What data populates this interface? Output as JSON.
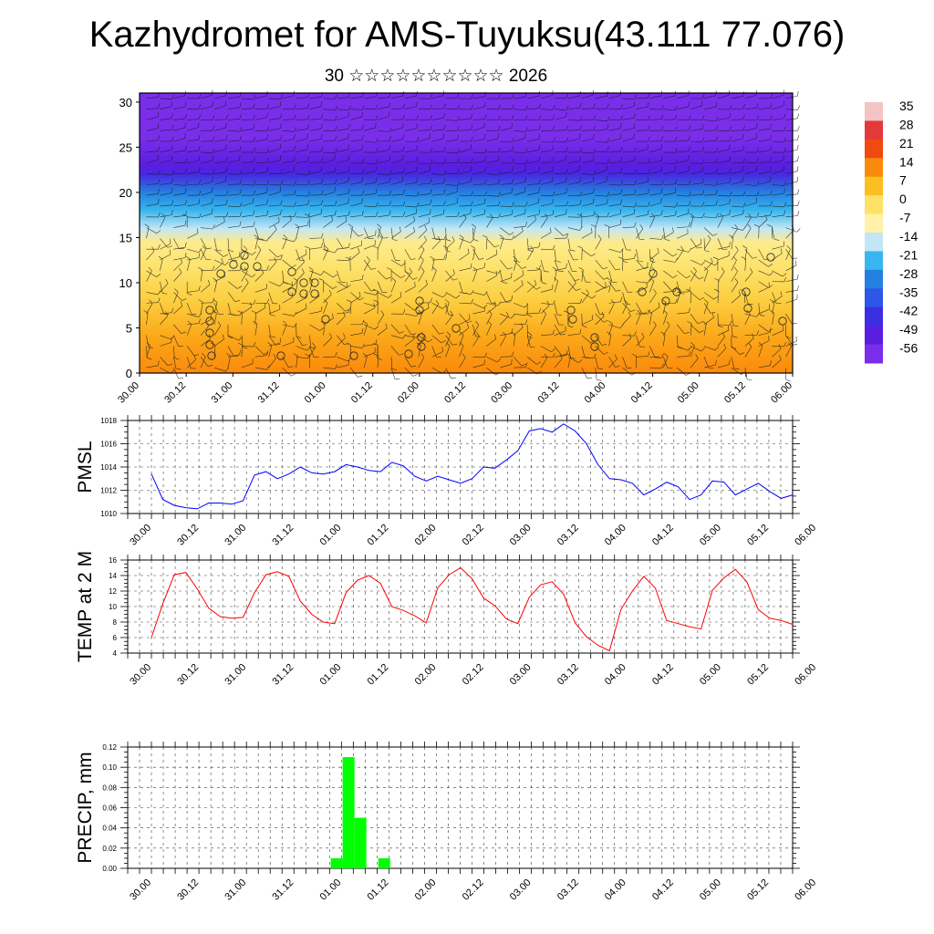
{
  "header": {
    "title": "Kazhydromet for AMS-Tuyuksu(43.111 77.076)",
    "subtitle": "30 ☆☆☆☆☆☆☆☆☆☆ 2026"
  },
  "chart_data": [
    {
      "type": "heatmap",
      "description_role": "vertical cross-section of temperature with wind barbs",
      "x_tick_labels": [
        "30.00",
        "30.12",
        "31.00",
        "31.12",
        "01.00",
        "01.12",
        "02.00",
        "02.12",
        "03.00",
        "03.12",
        "04.00",
        "04.12",
        "05.00",
        "05.12",
        "06.00"
      ],
      "y_ticks": [
        0,
        5,
        10,
        15,
        20,
        25,
        30
      ],
      "ylim": [
        0,
        31
      ],
      "colorbar": {
        "labels": [
          "35",
          "28",
          "21",
          "14",
          "7",
          "0",
          "-7",
          "-14",
          "-21",
          "-28",
          "-35",
          "-42",
          "-49",
          "-56"
        ],
        "colors": [
          "#f4c4c4",
          "#e23a3a",
          "#f04a10",
          "#fa8a0c",
          "#fbbf22",
          "#fde267",
          "#fff2a8",
          "#c3e6f5",
          "#38b6ee",
          "#2480e0",
          "#2e56e8",
          "#3c2ee2",
          "#5a1ee0",
          "#7a2eea"
        ]
      },
      "temperature_profile": [
        {
          "height": 0,
          "temp": 14
        },
        {
          "height": 4,
          "temp": 10
        },
        {
          "height": 8,
          "temp": 4
        },
        {
          "height": 12,
          "temp": -1
        },
        {
          "height": 14.5,
          "temp": -4
        },
        {
          "height": 16,
          "temp": -14
        },
        {
          "height": 18,
          "temp": -21
        },
        {
          "height": 20,
          "temp": -28
        },
        {
          "height": 22,
          "temp": -45
        },
        {
          "height": 23,
          "temp": -49
        },
        {
          "height": 26,
          "temp": -56
        },
        {
          "height": 31,
          "temp": -58
        }
      ],
      "grid": true
    },
    {
      "type": "line",
      "ylabel": "PMSL",
      "ylim": [
        1010,
        1018
      ],
      "y_ticks": [
        "1010",
        "1012",
        "1014",
        "1016",
        "1018"
      ],
      "x_tick_labels": [
        "30.00",
        "30.12",
        "31.00",
        "31.12",
        "01.00",
        "01.12",
        "02.00",
        "02.12",
        "03.00",
        "03.12",
        "04.00",
        "04.12",
        "05.00",
        "05.12",
        "06.00"
      ],
      "color": "#0000ff",
      "values": [
        1013.4,
        1011.2,
        1010.7,
        1010.5,
        1010.4,
        1010.9,
        1010.9,
        1010.8,
        1011.1,
        1013.3,
        1013.6,
        1013.0,
        1013.4,
        1014.0,
        1013.5,
        1013.4,
        1013.6,
        1014.2,
        1014.0,
        1013.7,
        1013.6,
        1014.4,
        1014.1,
        1013.2,
        1012.8,
        1013.2,
        1012.9,
        1012.6,
        1013.0,
        1014.0,
        1013.9,
        1014.6,
        1015.4,
        1017.1,
        1017.3,
        1017.0,
        1017.7,
        1017.1,
        1016.0,
        1014.2,
        1013.0,
        1012.9,
        1012.6,
        1011.6,
        1012.1,
        1012.7,
        1012.3,
        1011.2,
        1011.6,
        1012.8,
        1012.7,
        1011.6,
        1012.1,
        1012.6,
        1011.9,
        1011.3,
        1011.6
      ],
      "grid": true
    },
    {
      "type": "line",
      "ylabel": "TEMP at 2 M",
      "ylim": [
        4,
        16
      ],
      "y_ticks": [
        "4",
        "6",
        "8",
        "10",
        "12",
        "14",
        "16"
      ],
      "x_tick_labels": [
        "30.00",
        "30.12",
        "31.00",
        "31.12",
        "01.00",
        "01.12",
        "02.00",
        "02.12",
        "03.00",
        "03.12",
        "04.00",
        "04.12",
        "05.00",
        "05.12",
        "06.00"
      ],
      "color": "#ff0000",
      "values": [
        6.0,
        10.4,
        14.1,
        14.4,
        12.3,
        9.8,
        8.7,
        8.5,
        8.6,
        11.8,
        14.1,
        14.5,
        13.9,
        10.7,
        9.0,
        8.0,
        7.8,
        11.8,
        13.4,
        14.0,
        13.0,
        10.0,
        9.5,
        8.8,
        7.9,
        12.4,
        14.1,
        15.0,
        13.6,
        11.1,
        10.1,
        8.4,
        7.8,
        11.2,
        12.8,
        13.2,
        11.6,
        7.9,
        6.1,
        5.0,
        4.3,
        9.6,
        12.0,
        13.9,
        12.4,
        8.2,
        7.8,
        7.4,
        7.1,
        12.1,
        13.7,
        14.8,
        13.2,
        9.6,
        8.5,
        8.2,
        7.7
      ],
      "grid": true
    },
    {
      "type": "bar",
      "ylabel": "PRECIP, mm",
      "ylim": [
        0,
        0.12
      ],
      "y_ticks": [
        "0.00",
        "0.02",
        "0.04",
        "0.06",
        "0.08",
        "0.10",
        "0.12"
      ],
      "x_tick_labels": [
        "30.00",
        "30.12",
        "31.00",
        "31.12",
        "01.00",
        "01.12",
        "02.00",
        "02.12",
        "03.00",
        "03.12",
        "04.00",
        "04.12",
        "05.00",
        "05.12",
        "06.00"
      ],
      "color": "#00ff00",
      "bars": [
        {
          "x_index": 15,
          "value": 0.01
        },
        {
          "x_index": 16,
          "value": 0.11
        },
        {
          "x_index": 17,
          "value": 0.05
        },
        {
          "x_index": 19,
          "value": 0.01
        }
      ],
      "grid": true
    }
  ]
}
